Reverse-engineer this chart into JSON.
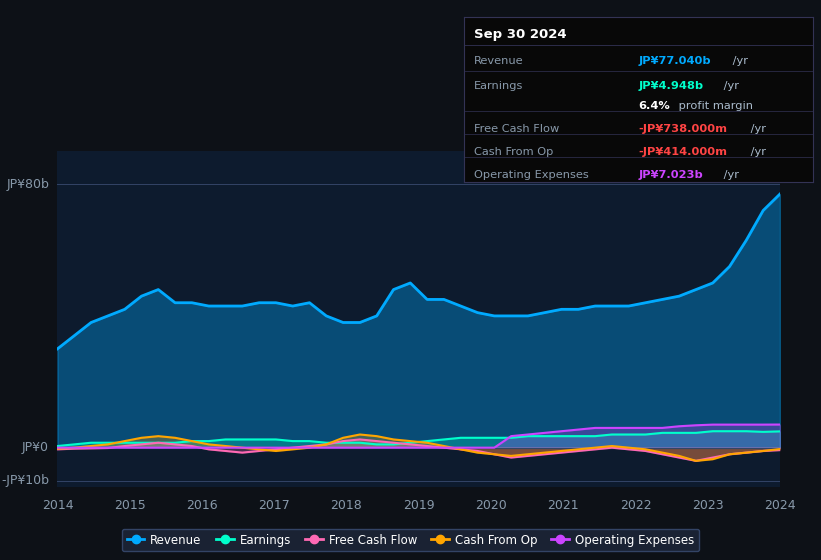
{
  "bg_color": "#0d1117",
  "plot_bg_color": "#0d1b2e",
  "x_labels": [
    "2014",
    "2015",
    "2016",
    "2017",
    "2018",
    "2019",
    "2020",
    "2021",
    "2022",
    "2023",
    "2024"
  ],
  "ylim": [
    -12,
    90
  ],
  "legend": [
    {
      "label": "Revenue",
      "color": "#00aaff"
    },
    {
      "label": "Earnings",
      "color": "#00ffcc"
    },
    {
      "label": "Free Cash Flow",
      "color": "#ff69b4"
    },
    {
      "label": "Cash From Op",
      "color": "#ffa500"
    },
    {
      "label": "Operating Expenses",
      "color": "#cc44ff"
    }
  ],
  "info_box_title": "Sep 30 2024",
  "info_rows": [
    {
      "label": "Revenue",
      "value": "JP¥77.040b",
      "suffix": " /yr",
      "label_color": "#8899aa",
      "value_color": "#00aaff"
    },
    {
      "label": "Earnings",
      "value": "JP¥4.948b",
      "suffix": " /yr",
      "label_color": "#8899aa",
      "value_color": "#00ffcc"
    },
    {
      "label": "",
      "value": "6.4%",
      "suffix": " profit margin",
      "label_color": "#8899aa",
      "value_color": "#ffffff"
    },
    {
      "label": "Free Cash Flow",
      "value": "-JP¥738.000m",
      "suffix": " /yr",
      "label_color": "#8899aa",
      "value_color": "#ff4444"
    },
    {
      "label": "Cash From Op",
      "value": "-JP¥414.000m",
      "suffix": " /yr",
      "label_color": "#8899aa",
      "value_color": "#ff4444"
    },
    {
      "label": "Operating Expenses",
      "value": "JP¥7.023b",
      "suffix": " /yr",
      "label_color": "#8899aa",
      "value_color": "#cc44ff"
    }
  ],
  "revenue": [
    30,
    34,
    38,
    40,
    42,
    46,
    48,
    44,
    44,
    43,
    43,
    43,
    44,
    44,
    43,
    44,
    40,
    38,
    38,
    40,
    48,
    50,
    45,
    45,
    43,
    41,
    40,
    40,
    40,
    41,
    42,
    42,
    43,
    43,
    43,
    44,
    45,
    46,
    48,
    50,
    55,
    63,
    72,
    77
  ],
  "earnings": [
    0.5,
    1.0,
    1.5,
    1.5,
    1.5,
    1.5,
    1.5,
    1.5,
    2.0,
    2.0,
    2.5,
    2.5,
    2.5,
    2.5,
    2.0,
    2.0,
    1.5,
    1.5,
    1.5,
    1.0,
    1.0,
    1.5,
    2.0,
    2.5,
    3.0,
    3.0,
    3.0,
    3.0,
    3.5,
    3.5,
    3.5,
    3.5,
    3.5,
    4.0,
    4.0,
    4.0,
    4.5,
    4.5,
    4.5,
    5.0,
    5.0,
    5.0,
    4.8,
    4.948
  ],
  "free_cash_flow": [
    -0.5,
    -0.3,
    -0.2,
    -0.1,
    0.5,
    1.0,
    1.5,
    1.0,
    0.5,
    -0.5,
    -1.0,
    -1.5,
    -1.0,
    -0.5,
    0.0,
    0.5,
    1.0,
    2.0,
    2.5,
    2.0,
    1.5,
    1.0,
    0.5,
    0.0,
    -0.5,
    -1.0,
    -2.0,
    -3.0,
    -2.5,
    -2.0,
    -1.5,
    -1.0,
    -0.5,
    0.0,
    -0.5,
    -1.0,
    -2.0,
    -3.0,
    -4.0,
    -3.0,
    -2.0,
    -1.5,
    -1.0,
    -0.738
  ],
  "cash_from_op": [
    -0.3,
    0.0,
    0.5,
    1.0,
    2.0,
    3.0,
    3.5,
    3.0,
    2.0,
    1.0,
    0.5,
    0.0,
    -0.5,
    -1.0,
    -0.5,
    0.0,
    1.0,
    3.0,
    4.0,
    3.5,
    2.5,
    2.0,
    1.5,
    0.5,
    -0.5,
    -1.5,
    -2.0,
    -2.5,
    -2.0,
    -1.5,
    -1.0,
    -0.5,
    0.0,
    0.5,
    0.0,
    -0.5,
    -1.5,
    -2.5,
    -4.0,
    -3.5,
    -2.0,
    -1.5,
    -1.0,
    -0.414
  ],
  "operating_expenses": [
    0,
    0,
    0,
    0,
    0,
    0,
    0,
    0,
    0,
    0,
    0,
    0,
    0,
    0,
    0,
    0,
    0,
    0,
    0,
    0,
    0,
    0,
    0,
    0,
    0,
    0,
    0,
    3.5,
    4.0,
    4.5,
    5.0,
    5.5,
    6.0,
    6.0,
    6.0,
    6.0,
    6.0,
    6.5,
    6.8,
    7.0,
    7.0,
    7.0,
    7.0,
    7.023
  ]
}
